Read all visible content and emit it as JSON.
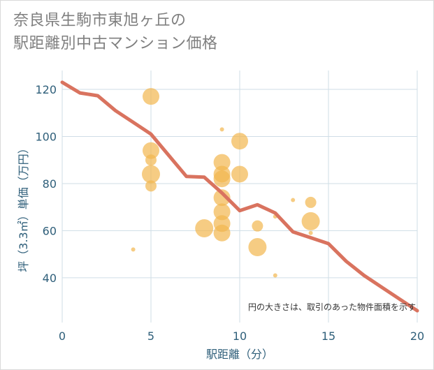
{
  "title": {
    "line1": "奈良県生駒市東旭ヶ丘の",
    "line2": "駅距離別中古マンション価格"
  },
  "chart_data": {
    "type": "scatter",
    "title": "奈良県生駒市東旭ヶ丘の駅距離別中古マンション価格",
    "xlabel": "駅距離（分）",
    "ylabel": "坪（3.3㎡）単価（万円）",
    "xlim": [
      0,
      20
    ],
    "ylim": [
      21,
      128
    ],
    "xticks": [
      0,
      5,
      10,
      15,
      20
    ],
    "yticks": [
      40,
      60,
      80,
      100,
      120
    ],
    "grid": true,
    "annotation": "円の大きさは、取引のあった物件面積を示す",
    "colors": {
      "bubble": "#f2b74f",
      "line": "#d9735f",
      "grid": "#cfdde6",
      "text": "#2f5f7a"
    },
    "bubbles": [
      {
        "x": 4,
        "y": 52,
        "size": 1
      },
      {
        "x": 5,
        "y": 117,
        "size": 5
      },
      {
        "x": 5,
        "y": 94,
        "size": 5
      },
      {
        "x": 5,
        "y": 90,
        "size": 3
      },
      {
        "x": 5,
        "y": 84,
        "size": 6
      },
      {
        "x": 5,
        "y": 79,
        "size": 3
      },
      {
        "x": 8,
        "y": 61,
        "size": 6
      },
      {
        "x": 9,
        "y": 103,
        "size": 1
      },
      {
        "x": 9,
        "y": 89,
        "size": 5
      },
      {
        "x": 9,
        "y": 84,
        "size": 5
      },
      {
        "x": 9,
        "y": 82,
        "size": 5
      },
      {
        "x": 9,
        "y": 74,
        "size": 5
      },
      {
        "x": 9,
        "y": 68,
        "size": 5
      },
      {
        "x": 9,
        "y": 63,
        "size": 5
      },
      {
        "x": 9,
        "y": 59,
        "size": 5
      },
      {
        "x": 10,
        "y": 98,
        "size": 5
      },
      {
        "x": 10,
        "y": 84,
        "size": 5
      },
      {
        "x": 11,
        "y": 62,
        "size": 3
      },
      {
        "x": 11,
        "y": 53,
        "size": 6
      },
      {
        "x": 12,
        "y": 66,
        "size": 1
      },
      {
        "x": 12,
        "y": 41,
        "size": 1
      },
      {
        "x": 13,
        "y": 73,
        "size": 1
      },
      {
        "x": 14,
        "y": 72,
        "size": 3
      },
      {
        "x": 14,
        "y": 64,
        "size": 6
      },
      {
        "x": 14,
        "y": 59,
        "size": 1
      }
    ],
    "line": [
      {
        "x": 0,
        "y": 123
      },
      {
        "x": 1,
        "y": 118.5
      },
      {
        "x": 2,
        "y": 117.3
      },
      {
        "x": 3,
        "y": 111
      },
      {
        "x": 4,
        "y": 106
      },
      {
        "x": 5,
        "y": 101
      },
      {
        "x": 6,
        "y": 92
      },
      {
        "x": 7,
        "y": 83
      },
      {
        "x": 8,
        "y": 82.7
      },
      {
        "x": 9,
        "y": 76
      },
      {
        "x": 10,
        "y": 68.5
      },
      {
        "x": 11,
        "y": 71
      },
      {
        "x": 12,
        "y": 67.5
      },
      {
        "x": 13,
        "y": 59.5
      },
      {
        "x": 14,
        "y": 57
      },
      {
        "x": 15,
        "y": 54.5
      },
      {
        "x": 16,
        "y": 47
      },
      {
        "x": 17,
        "y": 41
      },
      {
        "x": 18,
        "y": 36
      },
      {
        "x": 19,
        "y": 31
      },
      {
        "x": 20,
        "y": 26
      }
    ]
  }
}
